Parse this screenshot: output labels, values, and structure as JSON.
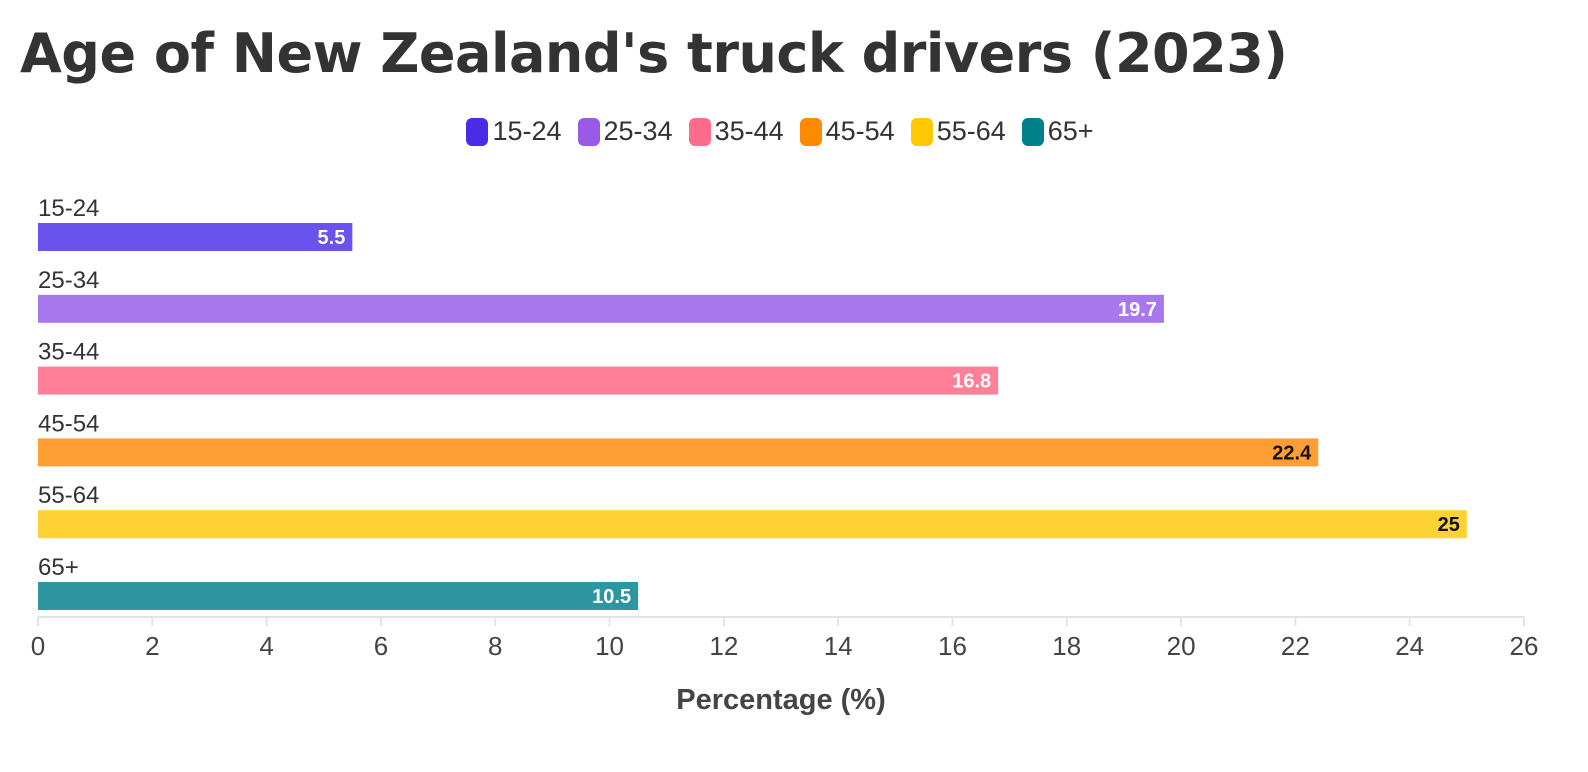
{
  "chart_data": {
    "type": "bar",
    "orientation": "horizontal",
    "title": "Age of New Zealand's truck drivers (2023)",
    "xlabel": "Percentage (%)",
    "ylabel": "",
    "categories": [
      "15-24",
      "25-34",
      "35-44",
      "45-54",
      "55-64",
      "65+"
    ],
    "values": [
      5.5,
      19.7,
      16.8,
      22.4,
      25,
      10.5
    ],
    "value_labels": [
      "5.5",
      "19.7",
      "16.8",
      "22.4",
      "25",
      "10.5"
    ],
    "xlim": [
      0,
      26
    ],
    "xticks": [
      "0",
      "2",
      "4",
      "6",
      "8",
      "10",
      "12",
      "14",
      "16",
      "18",
      "20",
      "22",
      "24",
      "26"
    ],
    "grid": false,
    "legend_position": "top-center",
    "legend": [
      {
        "label": "15-24",
        "color": "#4a2be8"
      },
      {
        "label": "25-34",
        "color": "#9a5ae6"
      },
      {
        "label": "35-44",
        "color": "#ff6b8a"
      },
      {
        "label": "45-54",
        "color": "#ff8a00"
      },
      {
        "label": "55-64",
        "color": "#ffc800"
      },
      {
        "label": "65+",
        "color": "#00808a"
      }
    ],
    "bar_colors": [
      "#6a52ec",
      "#a877ec",
      "#ff7f99",
      "#ff9e33",
      "#ffd233",
      "#2e96a0"
    ],
    "label_colors": [
      "#ffffff",
      "#ffffff",
      "#ffffff",
      "#111111",
      "#111111",
      "#ffffff"
    ]
  }
}
